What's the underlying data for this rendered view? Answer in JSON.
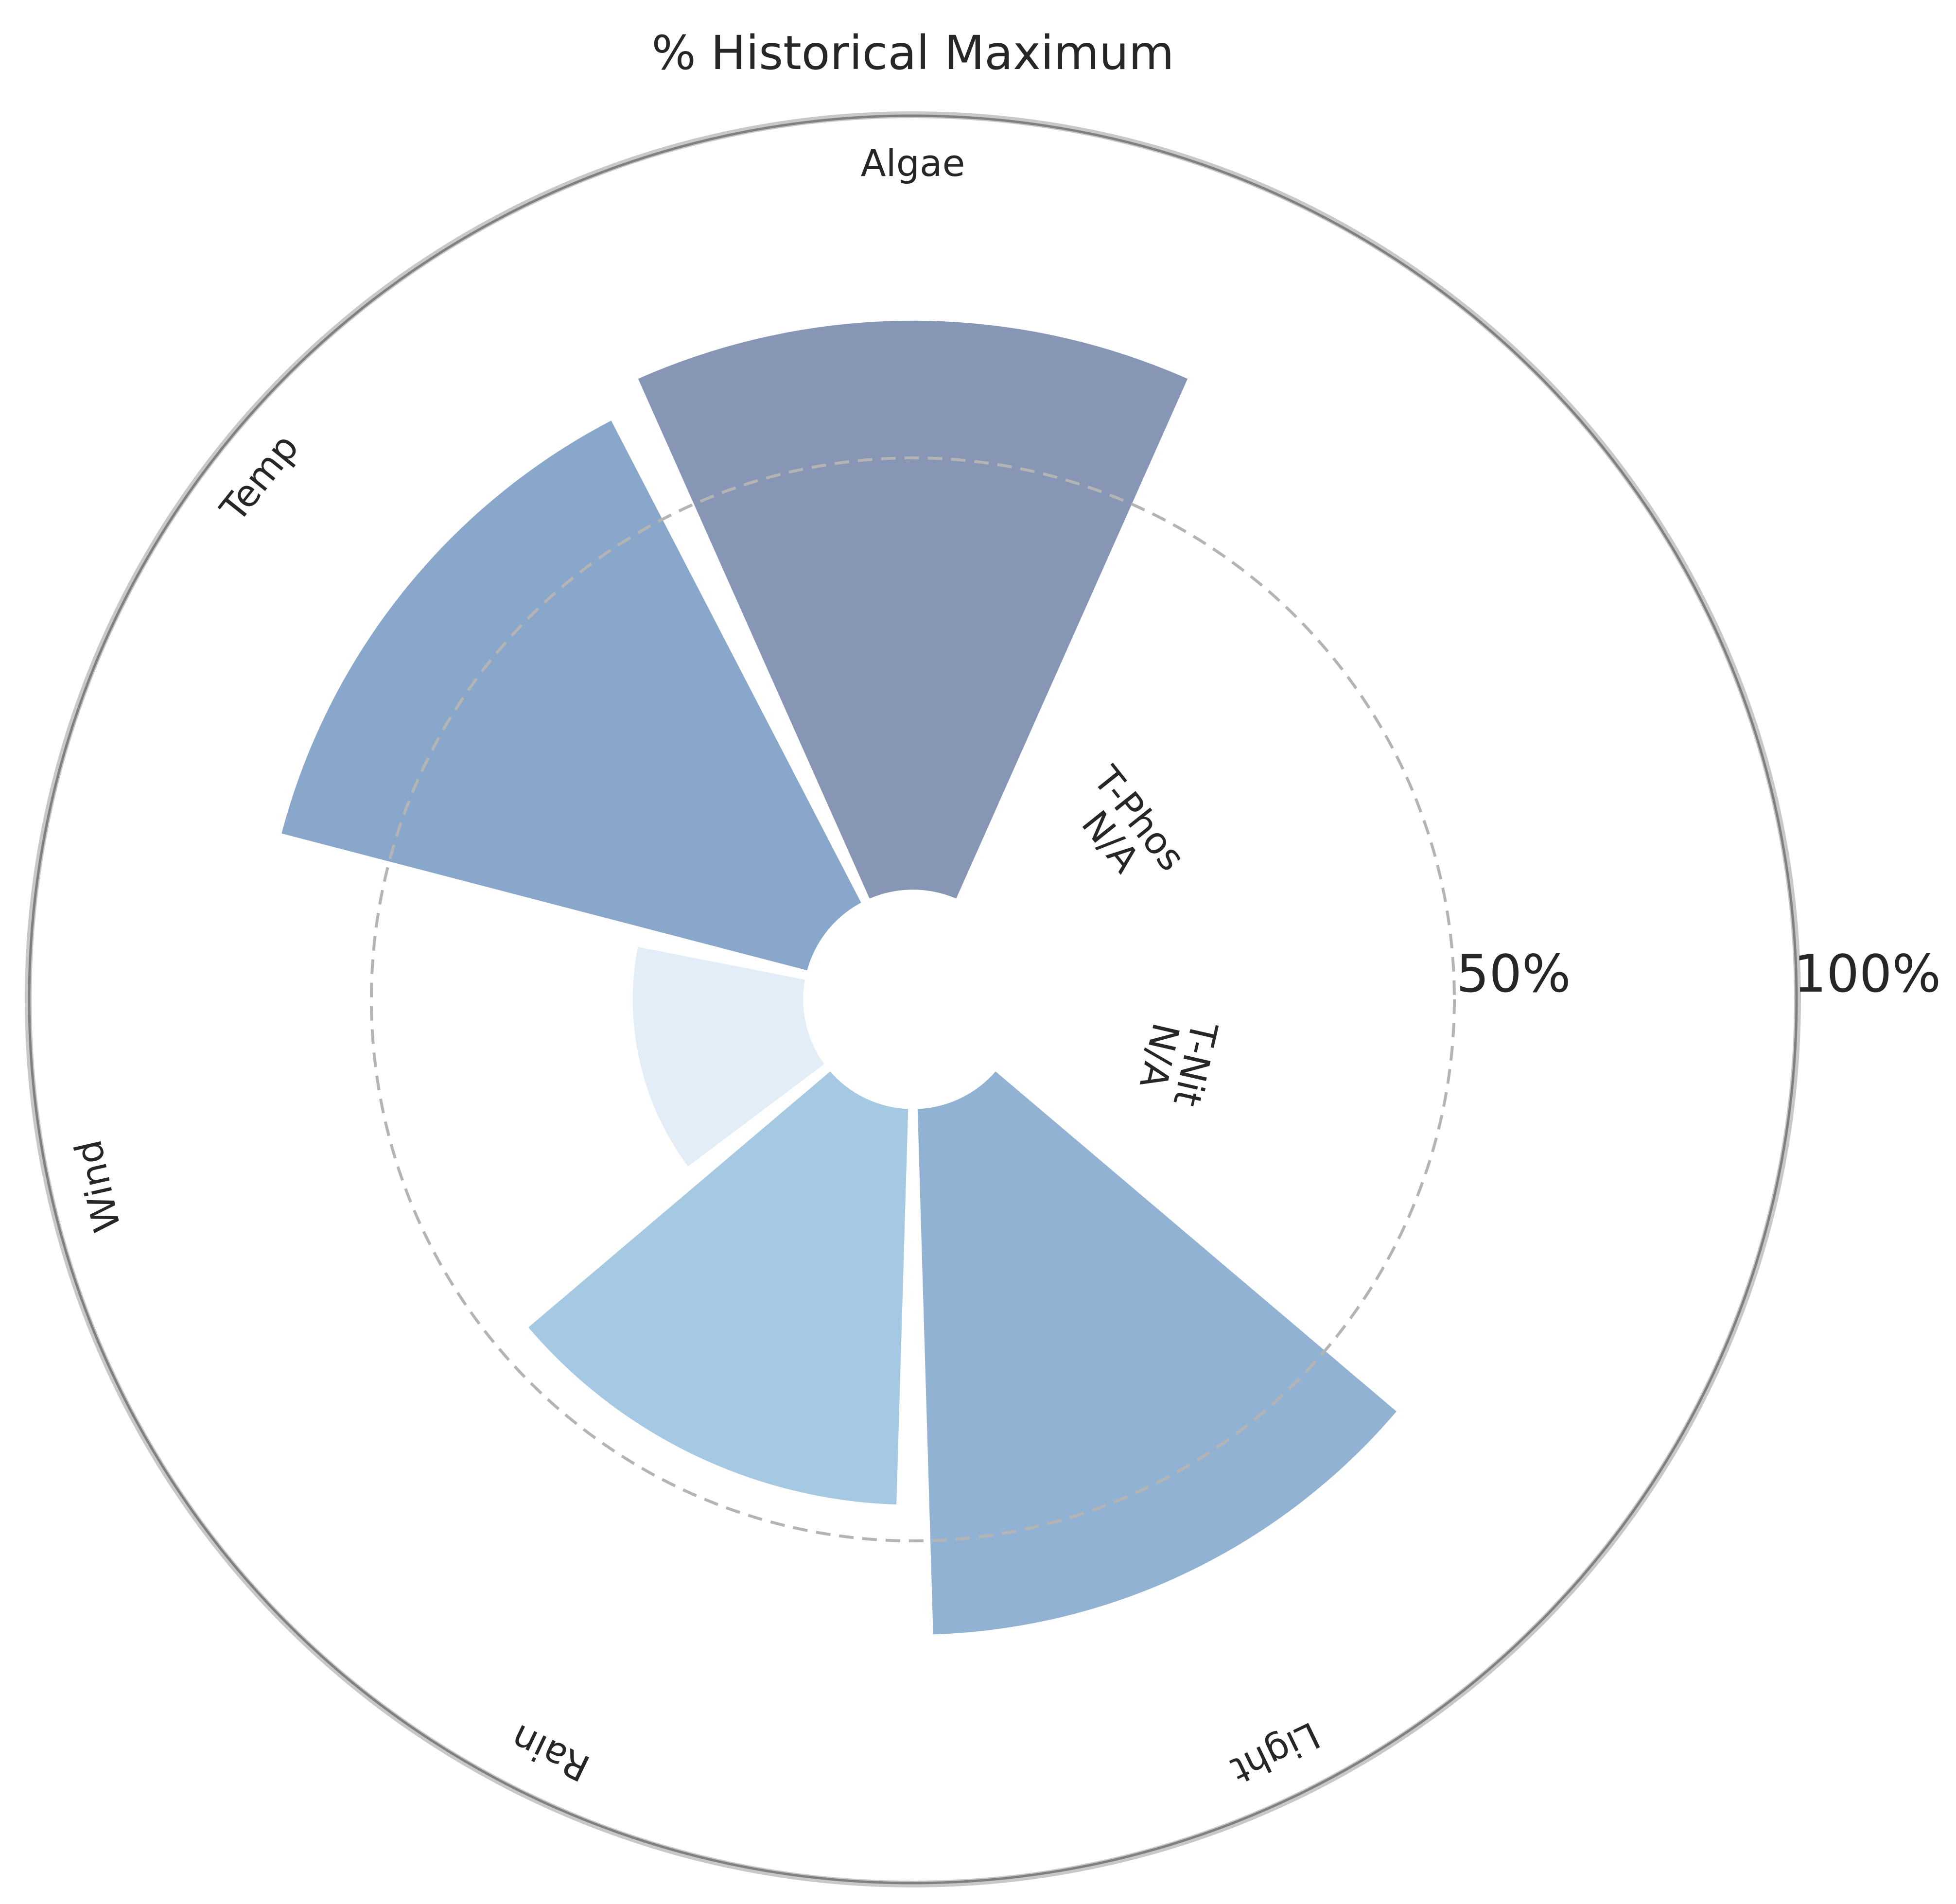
{
  "chart_data": {
    "type": "polar-bar",
    "title": "% Historical Maximum",
    "radial_ticks": [
      {
        "value": 50,
        "label": "50%"
      },
      {
        "value": 100,
        "label": "100%"
      }
    ],
    "rlim": [
      0,
      100
    ],
    "inner_hole_percent": 10,
    "grid": "dashed circle at 50%",
    "categories": [
      {
        "name": "Algae",
        "angle_deg": 90,
        "value": 66,
        "note": "",
        "color": "#6b7fa3"
      },
      {
        "name": "T-Phos",
        "angle_deg": 38.6,
        "value": null,
        "note": "N/A",
        "color": ""
      },
      {
        "name": "T-Nit",
        "angle_deg": -12.9,
        "value": null,
        "note": "N/A",
        "color": ""
      },
      {
        "name": "Light",
        "angle_deg": -64.3,
        "value": 61,
        "note": "",
        "color": "#7aa1cb"
      },
      {
        "name": "Rain",
        "angle_deg": -115.7,
        "value": 46,
        "note": "",
        "color": "#91bcdd"
      },
      {
        "name": "Wind",
        "angle_deg": -167.1,
        "value": 20,
        "note": "",
        "color": "#dce9f5"
      },
      {
        "name": "Temp",
        "angle_deg": 141.4,
        "value": 63,
        "note": "",
        "color": "#6e94c0"
      }
    ],
    "bar_width_deg": 48
  }
}
